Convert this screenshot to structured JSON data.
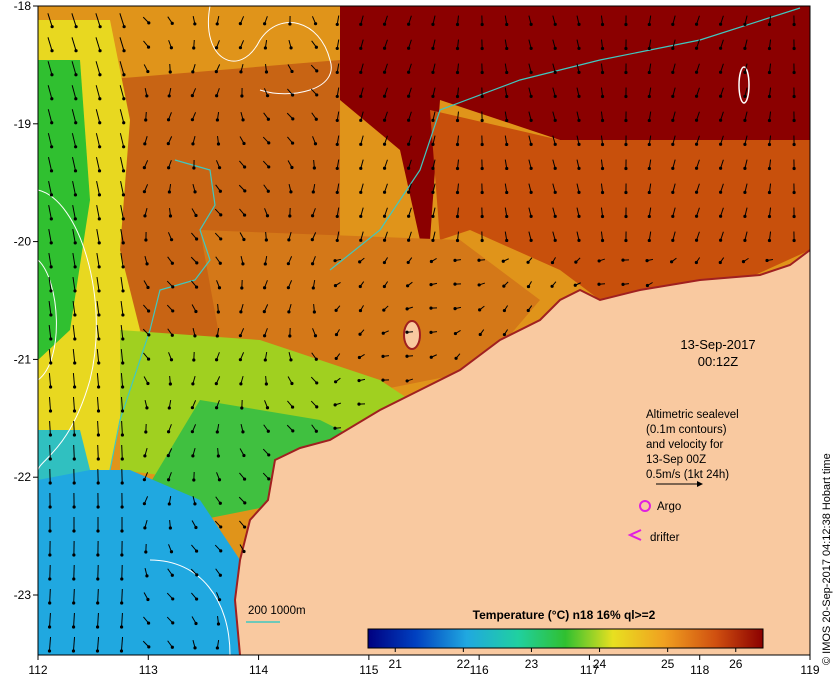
{
  "map": {
    "title": "Temperature (°C) n18 16% ql>=2",
    "date": "13-Sep-2017",
    "time": "00:12Z",
    "lon_ticks": [
      "112",
      "113",
      "114",
      "115",
      "116",
      "117",
      "118",
      "119"
    ],
    "lat_ticks": [
      "-18",
      "-19",
      "-20",
      "-21",
      "-22",
      "-23"
    ],
    "colorbar_ticks": [
      "21",
      "22",
      "23",
      "24",
      "25",
      "26"
    ],
    "colorbar_range": [
      20.6,
      26.4
    ],
    "altimetry_note": [
      "Altimetric sealevel",
      "(0.1m contours)",
      "and velocity for",
      "13-Sep 00Z",
      "0.5m/s (1kt 24h)"
    ],
    "argo_label": "Argo",
    "drifter_label": "drifter",
    "isobath_label": "200  1000m",
    "credit": "© IMOS 20-Sep-2017 04:12:38 Hobart time",
    "colors": {
      "land": "#F9C9A0",
      "hot": "#8B0000",
      "warm": "#D86A10",
      "mid": "#E89B1E",
      "yellow": "#E8E020",
      "green": "#2AB82A",
      "cyan": "#20A8E0",
      "isobath": "#40C8C0",
      "argo": "#E020E0",
      "coast": "#A02020"
    }
  }
}
